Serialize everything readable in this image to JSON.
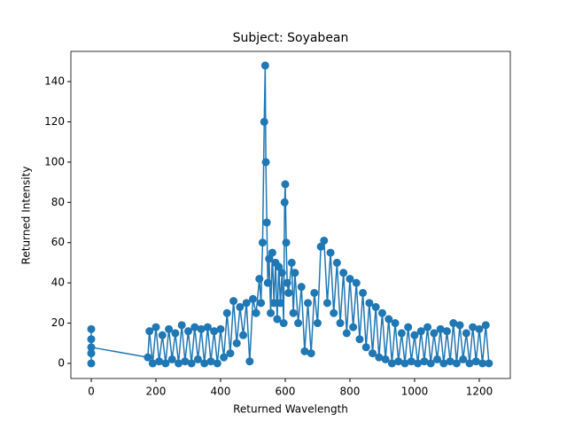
{
  "chart_data": {
    "type": "line",
    "title": "Subject: Soyabean",
    "x_label": "Returned Wavelength",
    "y_label": "Returned Intensity",
    "markers": true,
    "series": [
      {
        "color": "#1f77b4",
        "x": [
          0,
          0,
          0,
          0,
          0,
          175,
          180,
          190,
          200,
          210,
          220,
          230,
          240,
          250,
          260,
          270,
          280,
          290,
          300,
          310,
          320,
          330,
          340,
          350,
          360,
          370,
          380,
          390,
          400,
          410,
          420,
          430,
          440,
          450,
          460,
          470,
          480,
          490,
          500,
          510,
          520,
          525,
          530,
          535,
          538,
          540,
          543,
          546,
          550,
          555,
          560,
          565,
          570,
          575,
          580,
          585,
          590,
          595,
          598,
          600,
          603,
          606,
          610,
          620,
          625,
          630,
          640,
          650,
          660,
          670,
          680,
          690,
          700,
          710,
          720,
          730,
          740,
          750,
          760,
          770,
          780,
          790,
          800,
          810,
          820,
          830,
          840,
          850,
          860,
          870,
          880,
          890,
          900,
          910,
          920,
          930,
          940,
          950,
          960,
          970,
          980,
          990,
          1000,
          1010,
          1020,
          1030,
          1040,
          1050,
          1060,
          1070,
          1080,
          1090,
          1100,
          1110,
          1120,
          1130,
          1140,
          1150,
          1160,
          1170,
          1180,
          1190,
          1200,
          1210,
          1220,
          1230
        ],
        "values": [
          0,
          17,
          5,
          12,
          8,
          3,
          16,
          0,
          18,
          1,
          14,
          0,
          17,
          2,
          15,
          0,
          19,
          1,
          16,
          0,
          18,
          2,
          17,
          0,
          18,
          1,
          16,
          0,
          17,
          3,
          25,
          5,
          31,
          10,
          28,
          14,
          30,
          1,
          32,
          25,
          42,
          30,
          60,
          120,
          148,
          100,
          70,
          40,
          52,
          25,
          55,
          30,
          50,
          22,
          48,
          30,
          45,
          20,
          80,
          89,
          60,
          40,
          35,
          50,
          25,
          45,
          20,
          38,
          6,
          30,
          5,
          35,
          20,
          58,
          61,
          30,
          55,
          25,
          50,
          20,
          45,
          15,
          42,
          18,
          40,
          12,
          35,
          8,
          30,
          5,
          28,
          3,
          25,
          2,
          22,
          0,
          20,
          1,
          15,
          0,
          18,
          1,
          14,
          0,
          16,
          1,
          18,
          0,
          15,
          2,
          17,
          0,
          16,
          1,
          20,
          0,
          19,
          2,
          15,
          0,
          18,
          1,
          17,
          0,
          19,
          0
        ]
      }
    ],
    "xlim": [
      -63,
      1296
    ],
    "ylim": [
      -7.5,
      155
    ],
    "xticks": [
      0,
      200,
      400,
      600,
      800,
      1000,
      1200
    ],
    "yticks": [
      0,
      20,
      40,
      60,
      80,
      100,
      120,
      140
    ]
  }
}
